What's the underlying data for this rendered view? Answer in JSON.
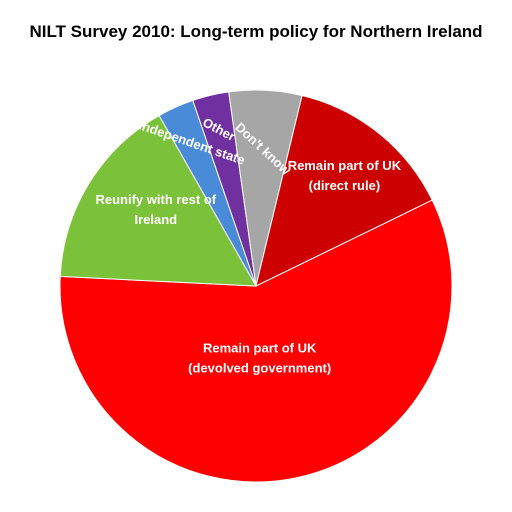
{
  "chart_data": {
    "type": "pie",
    "title": "NILT Survey 2010: Long-term policy for Northern Ireland",
    "slices": [
      {
        "label": "Remain part of UK (devolved government)",
        "label_lines": [
          "Remain part of UK",
          "(devolved government)"
        ],
        "value": 58,
        "color": "#FF0000",
        "label_rotation": 0
      },
      {
        "label": "Reunify with rest of Ireland",
        "label_lines": [
          "Reunify with rest of",
          "Ireland"
        ],
        "value": 16,
        "color": "#7CC13A",
        "label_rotation": 0
      },
      {
        "label": "Independent state",
        "label_lines": [
          "Independent state"
        ],
        "value": 3,
        "color": "#4A8BD8",
        "label_rotation": 19
      },
      {
        "label": "Other",
        "label_lines": [
          "Other"
        ],
        "value": 3,
        "color": "#7030A0",
        "label_rotation": 28
      },
      {
        "label": "Don't know",
        "label_lines": [
          "Don't know"
        ],
        "value": 6,
        "color": "#A6A6A6",
        "label_rotation": 43
      },
      {
        "label": "Remain part of UK (direct rule)",
        "label_lines": [
          "Remain part of UK",
          "(direct rule)"
        ],
        "value": 14,
        "color": "#CC0000",
        "label_rotation": 0
      }
    ],
    "start_angle_deg": 64,
    "direction": "clockwise",
    "legend": "none"
  }
}
